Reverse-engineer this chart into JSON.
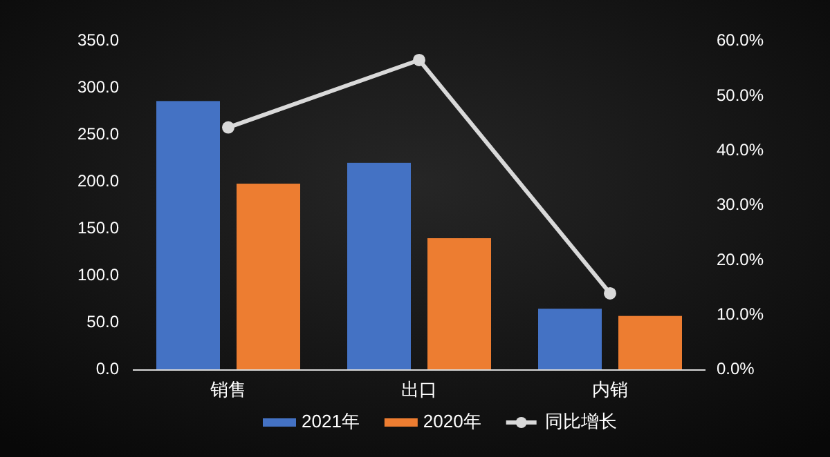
{
  "chart_data": {
    "type": "bar",
    "categories": [
      "销售",
      "出口",
      "内销"
    ],
    "series": [
      {
        "name": "2021年",
        "color": "#4472c4",
        "values": [
          286.5,
          220.7,
          65.3
        ]
      },
      {
        "name": "2020年",
        "color": "#ed7d31",
        "values": [
          198.5,
          140.4,
          57.6
        ]
      },
      {
        "name": "同比增长",
        "color": "#d9d9d9",
        "type": "line",
        "axis": "y2",
        "marker": "circle",
        "values": [
          44.3,
          56.6,
          14.0
        ]
      }
    ],
    "ylim": [
      0,
      350
    ],
    "yticks": [
      {
        "value": 0,
        "label": "0.0"
      },
      {
        "value": 50,
        "label": "50.0"
      },
      {
        "value": 100,
        "label": "100.0"
      },
      {
        "value": 150,
        "label": "150.0"
      },
      {
        "value": 200,
        "label": "200.0"
      },
      {
        "value": 250,
        "label": "250.0"
      },
      {
        "value": 300,
        "label": "300.0"
      },
      {
        "value": 350,
        "label": "350.0"
      }
    ],
    "y2lim": [
      0,
      60
    ],
    "y2ticks": [
      {
        "value": 0,
        "label": "0.0%"
      },
      {
        "value": 10,
        "label": "10.0%"
      },
      {
        "value": 20,
        "label": "20.0%"
      },
      {
        "value": 30,
        "label": "30.0%"
      },
      {
        "value": 40,
        "label": "40.0%"
      },
      {
        "value": 50,
        "label": "50.0%"
      },
      {
        "value": 60,
        "label": "60.0%"
      }
    ],
    "legend": "bottom"
  }
}
